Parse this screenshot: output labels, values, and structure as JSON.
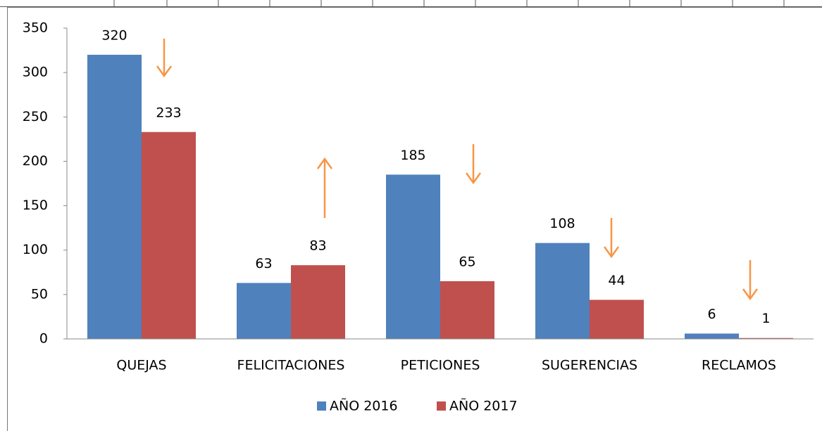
{
  "chart_data": {
    "type": "bar",
    "categories": [
      "QUEJAS",
      "FELICITACIONES",
      "PETICIONES",
      "SUGERENCIAS",
      "RECLAMOS"
    ],
    "series": [
      {
        "name": "AÑO 2016",
        "color": "#4f81bd",
        "values": [
          320,
          63,
          185,
          108,
          6
        ]
      },
      {
        "name": "AÑO 2017",
        "color": "#c0504d",
        "values": [
          233,
          83,
          65,
          44,
          1
        ]
      }
    ],
    "ylim": [
      0,
      350
    ],
    "yticks": [
      0,
      50,
      100,
      150,
      200,
      250,
      300,
      350
    ],
    "grid": false,
    "legend": "bottom"
  }
}
